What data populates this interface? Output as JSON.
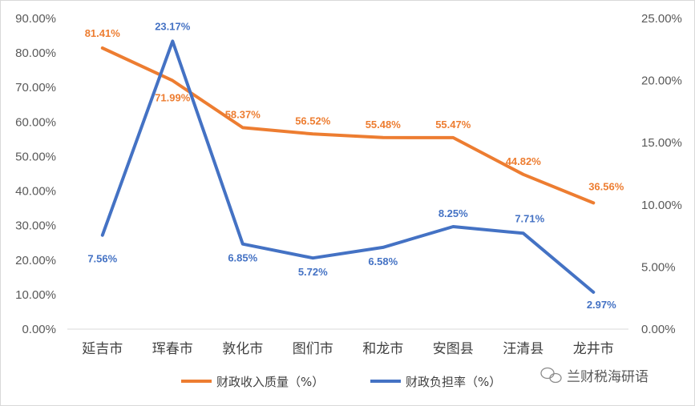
{
  "chart_data": {
    "type": "line",
    "categories": [
      "延吉市",
      "珲春市",
      "敦化市",
      "图们市",
      "和龙市",
      "安图县",
      "汪清县",
      "龙井市"
    ],
    "series": [
      {
        "name": "财政收入质量（%）",
        "axis": "left",
        "color": "#ED7D31",
        "values": [
          81.41,
          71.99,
          58.37,
          56.52,
          55.48,
          55.47,
          44.82,
          36.56
        ],
        "labels": [
          "81.41%",
          "71.99%",
          "58.37%",
          "56.52%",
          "55.48%",
          "55.47%",
          "44.82%",
          "36.56%"
        ]
      },
      {
        "name": "财政负担率（%）",
        "axis": "right",
        "color": "#4472C4",
        "values": [
          7.56,
          23.17,
          6.85,
          5.72,
          6.58,
          8.25,
          7.71,
          2.97
        ],
        "labels": [
          "7.56%",
          "23.17%",
          "6.85%",
          "5.72%",
          "6.58%",
          "8.25%",
          "7.71%",
          "2.97%"
        ]
      }
    ],
    "y_left": {
      "min": 0,
      "max": 90,
      "step": 10,
      "tick_labels": [
        "0.00%",
        "10.00%",
        "20.00%",
        "30.00%",
        "40.00%",
        "50.00%",
        "60.00%",
        "70.00%",
        "80.00%",
        "90.00%"
      ]
    },
    "y_right": {
      "min": 0,
      "max": 25,
      "step": 5,
      "tick_labels": [
        "0.00%",
        "5.00%",
        "10.00%",
        "15.00%",
        "20.00%",
        "25.00%"
      ]
    },
    "grid": false,
    "legend": "bottom",
    "title": "",
    "xlabel": "",
    "ylabel": ""
  },
  "watermark": {
    "text": "兰财税海研语",
    "icon": "wechat-icon"
  }
}
